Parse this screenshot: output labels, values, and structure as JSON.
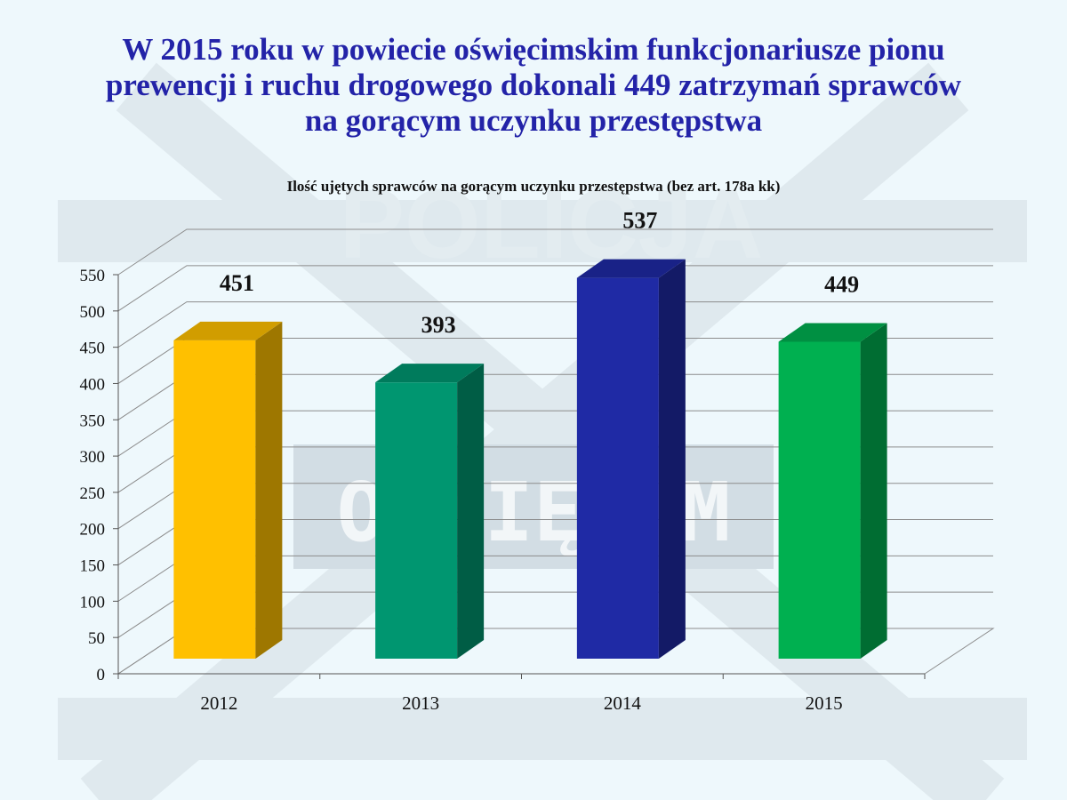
{
  "slide": {
    "title_lines": [
      "W 2015 roku w powiecie oświęcimskim funkcjonariusze pionu",
      "prewencji i ruchu drogowego dokonali 449 zatrzymań sprawców",
      "na gorącym uczynku przestępstwa"
    ],
    "watermark_texts": [
      "POLICJA",
      "OŚWIĘCIM"
    ]
  },
  "chart_data": {
    "type": "bar",
    "title": "Ilość ujętych sprawców  na gorącym uczynku przestępstwa (bez art. 178a kk)",
    "xlabel": "",
    "ylabel": "",
    "categories": [
      "2012",
      "2013",
      "2014",
      "2015"
    ],
    "values": [
      451,
      393,
      537,
      449
    ],
    "data_labels": [
      "451",
      "393",
      "537",
      "449"
    ],
    "colors": [
      "#ffc000",
      "#009670",
      "#1f2aa5",
      "#00b050"
    ],
    "ylim": [
      0,
      550
    ],
    "yticks": [
      0,
      50,
      100,
      150,
      200,
      250,
      300,
      350,
      400,
      450,
      500,
      550
    ],
    "grid": true,
    "legend": "none",
    "style": "3d"
  }
}
